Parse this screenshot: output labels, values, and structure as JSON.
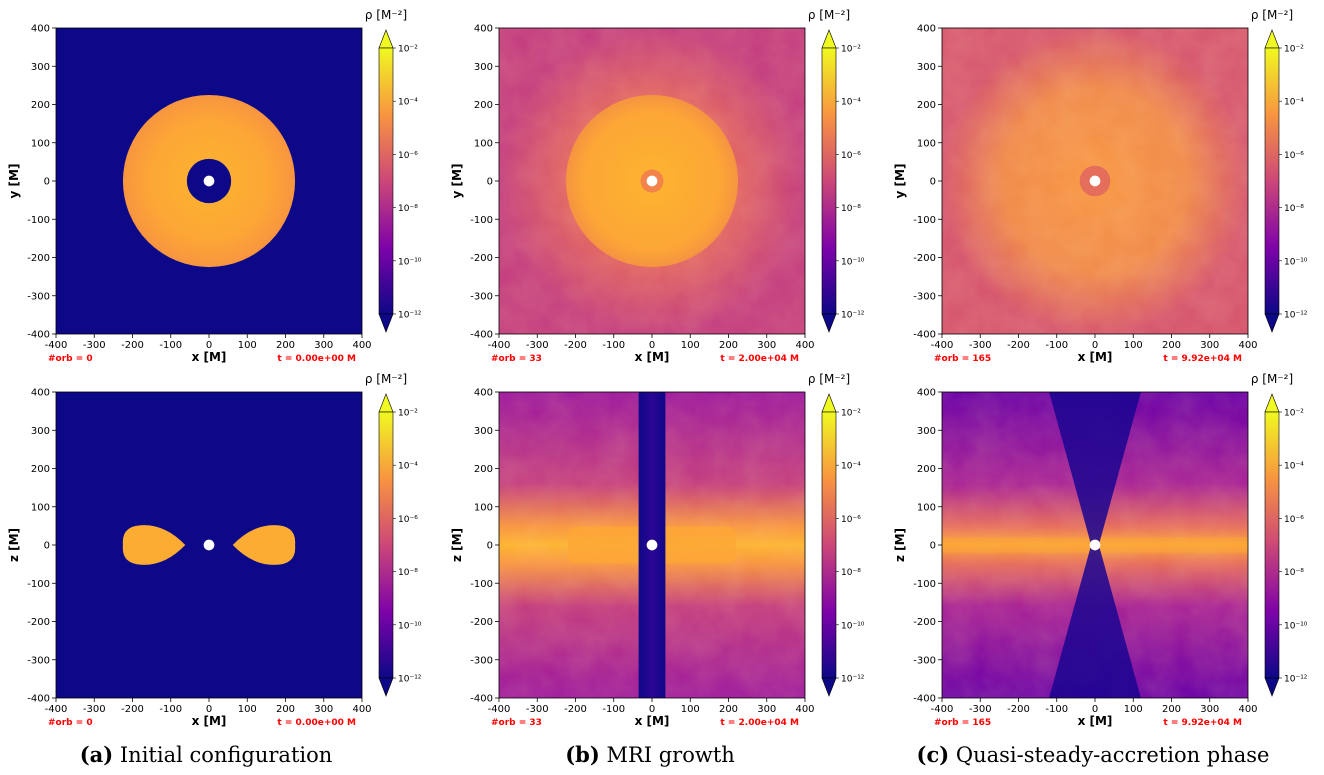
{
  "colors": {
    "cmap_low": "#0d0887",
    "cmap_mid_low": "#7e03a8",
    "cmap_mid": "#cc4778",
    "cmap_mid_high": "#f89540",
    "cmap_high": "#f0f921",
    "annotation": "#ff0000",
    "horizon": "#ffffff"
  },
  "captions": [
    {
      "label": "(a)",
      "text": " Initial configuration"
    },
    {
      "label": "(b)",
      "text": " MRI growth"
    },
    {
      "label": "(c)",
      "text": " Quasi-steady-accretion phase"
    }
  ],
  "chart_data": [
    {
      "type": "heatmap",
      "row": 0,
      "col": 0,
      "plane": "xy",
      "panel_state": "initial",
      "xlabel": "x [M]",
      "ylabel": "y [M]",
      "xlim": [
        -400,
        400
      ],
      "ylim": [
        -400,
        400
      ],
      "xticks": [
        "-400",
        "-300",
        "-200",
        "-100",
        "0",
        "100",
        "200",
        "300",
        "400"
      ],
      "yticks": [
        "-400",
        "-300",
        "-200",
        "-100",
        "0",
        "100",
        "200",
        "300",
        "400"
      ],
      "colorbar": {
        "label": "ρ [M⁻²]",
        "scale": "log",
        "range": [
          1e-12,
          0.01
        ],
        "extend": "both",
        "ticks": [
          "10⁻²",
          "10⁻⁴",
          "10⁻⁶",
          "10⁻⁸",
          "10⁻¹⁰",
          "10⁻¹²"
        ]
      },
      "annotations": {
        "orbits": "#orb = 0",
        "time": "t = 0.00e+00 M"
      }
    },
    {
      "type": "heatmap",
      "row": 0,
      "col": 1,
      "plane": "xy",
      "panel_state": "mri",
      "xlabel": "x [M]",
      "ylabel": "y [M]",
      "xlim": [
        -400,
        400
      ],
      "ylim": [
        -400,
        400
      ],
      "xticks": [
        "-400",
        "-300",
        "-200",
        "-100",
        "0",
        "100",
        "200",
        "300",
        "400"
      ],
      "yticks": [
        "-400",
        "-300",
        "-200",
        "-100",
        "0",
        "100",
        "200",
        "300",
        "400"
      ],
      "colorbar": {
        "label": "ρ [M⁻²]",
        "scale": "log",
        "range": [
          1e-12,
          0.01
        ],
        "extend": "both",
        "ticks": [
          "10⁻²",
          "10⁻⁴",
          "10⁻⁶",
          "10⁻⁸",
          "10⁻¹⁰",
          "10⁻¹²"
        ]
      },
      "annotations": {
        "orbits": "#orb = 33",
        "time": "t = 2.00e+04 M"
      }
    },
    {
      "type": "heatmap",
      "row": 0,
      "col": 2,
      "plane": "xy",
      "panel_state": "steady",
      "xlabel": "x [M]",
      "ylabel": "y [M]",
      "xlim": [
        -400,
        400
      ],
      "ylim": [
        -400,
        400
      ],
      "xticks": [
        "-400",
        "-300",
        "-200",
        "-100",
        "0",
        "100",
        "200",
        "300",
        "400"
      ],
      "yticks": [
        "-400",
        "-300",
        "-200",
        "-100",
        "0",
        "100",
        "200",
        "300",
        "400"
      ],
      "colorbar": {
        "label": "ρ [M⁻²]",
        "scale": "log",
        "range": [
          1e-12,
          0.01
        ],
        "extend": "both",
        "ticks": [
          "10⁻²",
          "10⁻⁴",
          "10⁻⁶",
          "10⁻⁸",
          "10⁻¹⁰",
          "10⁻¹²"
        ]
      },
      "annotations": {
        "orbits": "#orb = 165",
        "time": "t = 9.92e+04 M"
      }
    },
    {
      "type": "heatmap",
      "row": 1,
      "col": 0,
      "plane": "xz",
      "panel_state": "initial",
      "xlabel": "x [M]",
      "ylabel": "z [M]",
      "xlim": [
        -400,
        400
      ],
      "ylim": [
        -400,
        400
      ],
      "xticks": [
        "-400",
        "-300",
        "-200",
        "-100",
        "0",
        "100",
        "200",
        "300",
        "400"
      ],
      "yticks": [
        "-400",
        "-300",
        "-200",
        "-100",
        "0",
        "100",
        "200",
        "300",
        "400"
      ],
      "colorbar": {
        "label": "ρ [M⁻²]",
        "scale": "log",
        "range": [
          1e-12,
          0.01
        ],
        "extend": "both",
        "ticks": [
          "10⁻²",
          "10⁻⁴",
          "10⁻⁶",
          "10⁻⁸",
          "10⁻¹⁰",
          "10⁻¹²"
        ]
      },
      "annotations": {
        "orbits": "#orb = 0",
        "time": "t = 0.00e+00 M"
      }
    },
    {
      "type": "heatmap",
      "row": 1,
      "col": 1,
      "plane": "xz",
      "panel_state": "mri",
      "xlabel": "x [M]",
      "ylabel": "z [M]",
      "xlim": [
        -400,
        400
      ],
      "ylim": [
        -400,
        400
      ],
      "xticks": [
        "-400",
        "-300",
        "-200",
        "-100",
        "0",
        "100",
        "200",
        "300",
        "400"
      ],
      "yticks": [
        "-400",
        "-300",
        "-200",
        "-100",
        "0",
        "100",
        "200",
        "300",
        "400"
      ],
      "colorbar": {
        "label": "ρ [M⁻²]",
        "scale": "log",
        "range": [
          1e-12,
          0.01
        ],
        "extend": "both",
        "ticks": [
          "10⁻²",
          "10⁻⁴",
          "10⁻⁶",
          "10⁻⁸",
          "10⁻¹⁰",
          "10⁻¹²"
        ]
      },
      "annotations": {
        "orbits": "#orb = 33",
        "time": "t = 2.00e+04 M"
      }
    },
    {
      "type": "heatmap",
      "row": 1,
      "col": 2,
      "plane": "xz",
      "panel_state": "steady",
      "xlabel": "x [M]",
      "ylabel": "z [M]",
      "xlim": [
        -400,
        400
      ],
      "ylim": [
        -400,
        400
      ],
      "xticks": [
        "-400",
        "-300",
        "-200",
        "-100",
        "0",
        "100",
        "200",
        "300",
        "400"
      ],
      "yticks": [
        "-400",
        "-300",
        "-200",
        "-100",
        "0",
        "100",
        "200",
        "300",
        "400"
      ],
      "colorbar": {
        "label": "ρ [M⁻²]",
        "scale": "log",
        "range": [
          1e-12,
          0.01
        ],
        "extend": "both",
        "ticks": [
          "10⁻²",
          "10⁻⁴",
          "10⁻⁶",
          "10⁻⁸",
          "10⁻¹⁰",
          "10⁻¹²"
        ]
      },
      "annotations": {
        "orbits": "#orb = 165",
        "time": "t = 9.92e+04 M"
      }
    }
  ]
}
